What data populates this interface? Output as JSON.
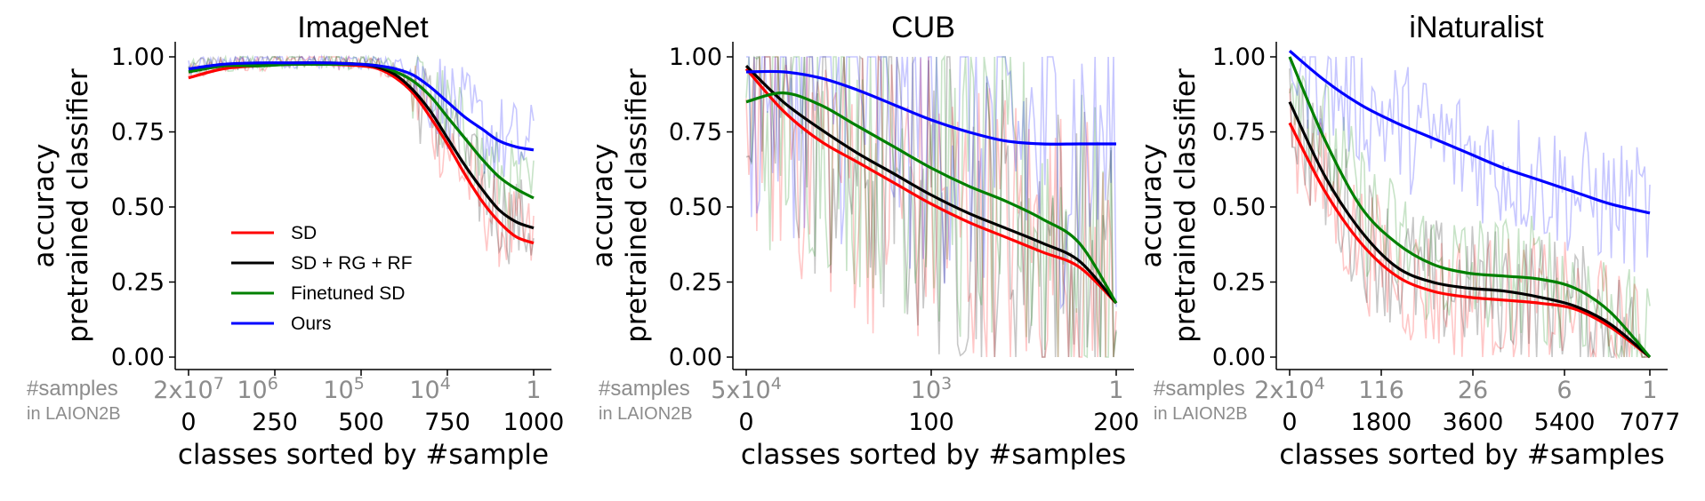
{
  "colors": {
    "SD": "#ff0000",
    "SD + RG + RF": "#000000",
    "Finetuned SD": "#008000",
    "Ours": "#0000ff",
    "sublabel_gray": "#8c8c8c"
  },
  "legend": {
    "placement": "lower-left",
    "entries": [
      "SD",
      "SD + RG + RF",
      "Finetuned SD",
      "Ours"
    ]
  },
  "samples_label": {
    "line1": "#samples",
    "line2": "in LAION2B"
  },
  "chart_data": [
    {
      "type": "line",
      "title": "ImageNet",
      "xlabel": "classes sorted by #sample",
      "ylabel": [
        "accuracy",
        "pretrained classifier"
      ],
      "xlim": [
        0,
        1000
      ],
      "ylim": [
        0.0,
        1.0
      ],
      "xticks": [
        0,
        250,
        500,
        750,
        1000
      ],
      "xtick_labels": [
        "0",
        "250",
        "500",
        "750",
        "1000"
      ],
      "yticks": [
        0.0,
        0.25,
        0.5,
        0.75,
        1.0
      ],
      "ytick_labels": [
        "0.00",
        "0.25",
        "0.50",
        "0.75",
        "1.00"
      ],
      "secondary_xticks": [
        0,
        200,
        450,
        700,
        1000
      ],
      "secondary_xtick_labels": [
        "2x10^7",
        "10^6",
        "10^5",
        "10^4",
        "1"
      ],
      "grid": false,
      "has_legend": true,
      "series": [
        {
          "name": "SD",
          "x": [
            0,
            100,
            200,
            300,
            400,
            500,
            550,
            600,
            650,
            700,
            750,
            800,
            850,
            900,
            950,
            1000
          ],
          "values": [
            0.93,
            0.96,
            0.97,
            0.975,
            0.975,
            0.97,
            0.96,
            0.93,
            0.88,
            0.8,
            0.71,
            0.61,
            0.52,
            0.45,
            0.4,
            0.38
          ]
        },
        {
          "name": "SD + RG + RF",
          "x": [
            0,
            100,
            200,
            300,
            400,
            500,
            550,
            600,
            650,
            700,
            750,
            800,
            850,
            900,
            950,
            1000
          ],
          "values": [
            0.95,
            0.97,
            0.975,
            0.98,
            0.98,
            0.975,
            0.965,
            0.94,
            0.89,
            0.82,
            0.73,
            0.64,
            0.56,
            0.49,
            0.45,
            0.43
          ]
        },
        {
          "name": "Finetuned SD",
          "x": [
            0,
            100,
            200,
            300,
            400,
            500,
            550,
            600,
            650,
            700,
            750,
            800,
            850,
            900,
            950,
            1000
          ],
          "values": [
            0.95,
            0.97,
            0.97,
            0.975,
            0.975,
            0.975,
            0.97,
            0.95,
            0.92,
            0.87,
            0.8,
            0.73,
            0.66,
            0.6,
            0.56,
            0.53
          ]
        },
        {
          "name": "Ours",
          "x": [
            0,
            100,
            200,
            300,
            400,
            500,
            550,
            600,
            650,
            700,
            750,
            800,
            850,
            900,
            950,
            1000
          ],
          "values": [
            0.96,
            0.975,
            0.98,
            0.98,
            0.98,
            0.975,
            0.97,
            0.96,
            0.94,
            0.9,
            0.85,
            0.8,
            0.76,
            0.72,
            0.7,
            0.69
          ]
        }
      ]
    },
    {
      "type": "line",
      "title": "CUB",
      "xlabel": "classes sorted by #samples",
      "ylabel": [
        "accuracy",
        "pretrained classifier"
      ],
      "xlim": [
        0,
        200
      ],
      "ylim": [
        0.0,
        1.0
      ],
      "xticks": [
        0,
        100,
        200
      ],
      "xtick_labels": [
        "0",
        "100",
        "200"
      ],
      "yticks": [
        0.0,
        0.25,
        0.5,
        0.75,
        1.0
      ],
      "ytick_labels": [
        "0.00",
        "0.25",
        "0.50",
        "0.75",
        "1.00"
      ],
      "secondary_xticks": [
        0,
        100,
        200
      ],
      "secondary_xtick_labels": [
        "5x10^4",
        "10^3",
        "1"
      ],
      "grid": false,
      "has_legend": false,
      "series": [
        {
          "name": "SD",
          "x": [
            0,
            20,
            40,
            60,
            80,
            100,
            120,
            140,
            160,
            180,
            200
          ],
          "values": [
            0.96,
            0.82,
            0.72,
            0.65,
            0.58,
            0.51,
            0.45,
            0.4,
            0.35,
            0.3,
            0.18
          ]
        },
        {
          "name": "SD + RG + RF",
          "x": [
            0,
            20,
            40,
            60,
            80,
            100,
            120,
            140,
            160,
            180,
            200
          ],
          "values": [
            0.97,
            0.85,
            0.76,
            0.68,
            0.61,
            0.54,
            0.48,
            0.43,
            0.38,
            0.32,
            0.18
          ]
        },
        {
          "name": "Finetuned SD",
          "x": [
            0,
            20,
            40,
            60,
            80,
            100,
            120,
            140,
            160,
            180,
            200
          ],
          "values": [
            0.85,
            0.88,
            0.84,
            0.77,
            0.7,
            0.63,
            0.57,
            0.52,
            0.46,
            0.38,
            0.18
          ]
        },
        {
          "name": "Ours",
          "x": [
            0,
            20,
            40,
            60,
            80,
            100,
            120,
            140,
            160,
            180,
            200
          ],
          "values": [
            0.95,
            0.95,
            0.93,
            0.89,
            0.84,
            0.79,
            0.75,
            0.72,
            0.71,
            0.71,
            0.71
          ]
        }
      ]
    },
    {
      "type": "line",
      "title": "iNaturalist",
      "xlabel": "classes sorted by #samples",
      "ylabel": [
        "accuracy",
        "pretrained classifier"
      ],
      "xlim": [
        0,
        7077
      ],
      "ylim": [
        0.0,
        1.0
      ],
      "xticks": [
        0,
        1800,
        3600,
        5400,
        7077
      ],
      "xtick_labels": [
        "0",
        "1800",
        "3600",
        "5400",
        "7077"
      ],
      "yticks": [
        0.0,
        0.25,
        0.5,
        0.75,
        1.0
      ],
      "ytick_labels": [
        "0.00",
        "0.25",
        "0.50",
        "0.75",
        "1.00"
      ],
      "secondary_xticks": [
        0,
        1800,
        3600,
        5400,
        7077
      ],
      "secondary_xtick_labels": [
        "2x10^4",
        "116",
        "26",
        "6",
        "1"
      ],
      "grid": false,
      "has_legend": false,
      "series": [
        {
          "name": "SD",
          "x": [
            0,
            700,
            1400,
            2100,
            2800,
            3500,
            4200,
            4900,
            5600,
            6300,
            7077
          ],
          "values": [
            0.78,
            0.55,
            0.38,
            0.27,
            0.22,
            0.2,
            0.19,
            0.18,
            0.16,
            0.1,
            0.0
          ]
        },
        {
          "name": "SD + RG + RF",
          "x": [
            0,
            700,
            1400,
            2100,
            2800,
            3500,
            4200,
            4900,
            5600,
            6300,
            7077
          ],
          "values": [
            0.85,
            0.6,
            0.42,
            0.3,
            0.25,
            0.23,
            0.22,
            0.2,
            0.17,
            0.11,
            0.0
          ]
        },
        {
          "name": "Finetuned SD",
          "x": [
            0,
            700,
            1400,
            2100,
            2800,
            3500,
            4200,
            4900,
            5600,
            6300,
            7077
          ],
          "values": [
            1.0,
            0.72,
            0.5,
            0.38,
            0.31,
            0.28,
            0.27,
            0.26,
            0.23,
            0.15,
            0.0
          ]
        },
        {
          "name": "Ours",
          "x": [
            0,
            700,
            1400,
            2100,
            2800,
            3500,
            4200,
            4900,
            5600,
            6300,
            7077
          ],
          "values": [
            1.02,
            0.92,
            0.84,
            0.78,
            0.73,
            0.68,
            0.63,
            0.59,
            0.55,
            0.51,
            0.48
          ]
        }
      ]
    }
  ]
}
